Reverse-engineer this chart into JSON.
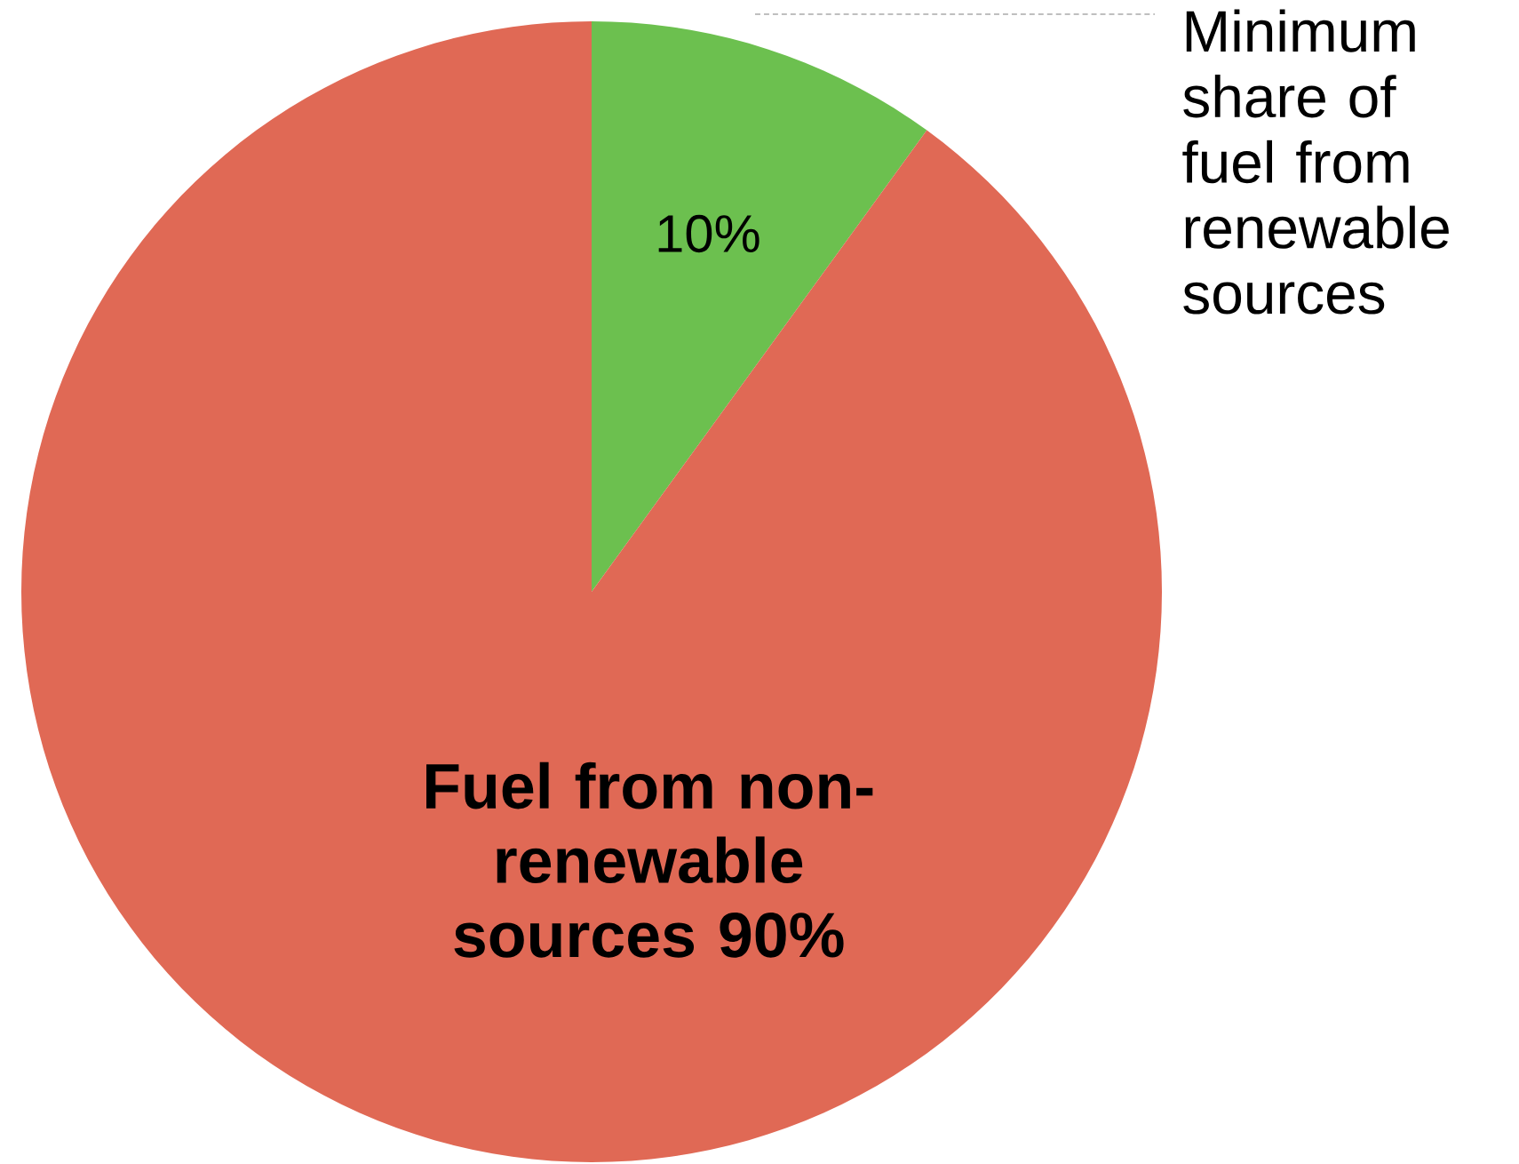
{
  "chart_data": {
    "type": "pie",
    "categories": [
      "Minimum share of fuel from renewable sources",
      "Fuel from non-renewable sources"
    ],
    "values": [
      10,
      90
    ],
    "value_labels": [
      "10%",
      "90%"
    ],
    "colors": [
      "#6cc04f",
      "#e06955"
    ]
  }
}
